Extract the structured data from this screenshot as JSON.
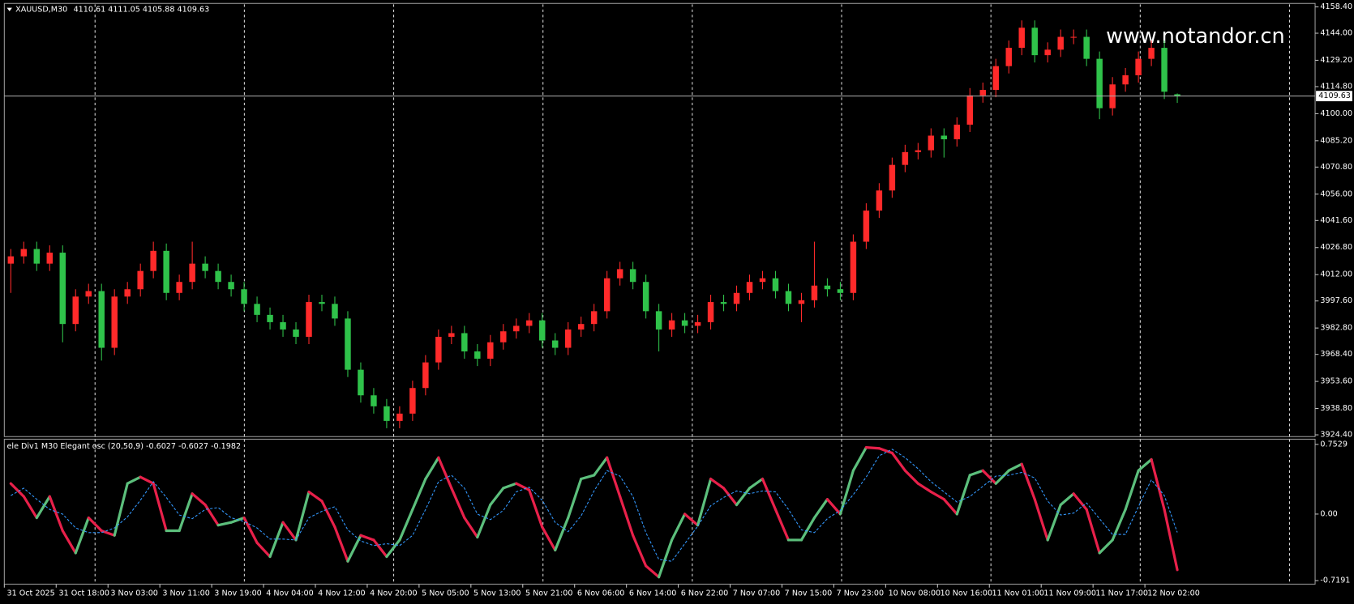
{
  "chart_data": [
    {
      "type": "candlestick",
      "title": "XAUUSD,M30",
      "watermark": "www.notandor.cn",
      "categories": [
        "31 Oct 2025",
        null,
        null,
        null,
        "31 Oct 18:00",
        null,
        null,
        null,
        "3 Nov 03:00",
        null,
        null,
        null,
        "3 Nov 11:00",
        null,
        null,
        null,
        "3 Nov 19:00",
        null,
        null,
        null,
        "4 Nov 04:00",
        null,
        null,
        null,
        "4 Nov 12:00",
        null,
        null,
        null,
        "4 Nov 20:00",
        null,
        null,
        null,
        "5 Nov 05:00",
        null,
        null,
        null,
        "5 Nov 13:00",
        null,
        null,
        null,
        "5 Nov 21:00",
        null,
        null,
        null,
        "6 Nov 06:00",
        null,
        null,
        null,
        "6 Nov 14:00",
        null,
        null,
        null,
        "6 Nov 22:00",
        null,
        null,
        null,
        "7 Nov 07:00",
        null,
        null,
        null,
        "7 Nov 15:00",
        null,
        null,
        null,
        "7 Nov 23:00",
        null,
        null,
        null,
        "10 Nov 08:00",
        null,
        null,
        null,
        "10 Nov 16:00",
        null,
        null,
        null,
        "11 Nov 01:00",
        null,
        null,
        null,
        "11 Nov 09:00",
        null,
        null,
        null,
        "11 Nov 17:00",
        null,
        null,
        null,
        "12 Nov 02:00",
        null,
        null
      ],
      "open": [
        4018,
        4022,
        4026,
        4018,
        4024,
        3985,
        4000,
        4003,
        3972,
        4000,
        4004,
        4014,
        4025,
        4002,
        4008,
        4018,
        4014,
        4008,
        4004,
        3996,
        3990,
        3986,
        3982,
        3978,
        3997,
        3996,
        3988,
        3960,
        3946,
        3940,
        3932,
        3936,
        3950,
        3964,
        3978,
        3980,
        3970,
        3966,
        3975,
        3981,
        3984,
        3987,
        3976,
        3972,
        3982,
        3985,
        3992,
        4010,
        4015,
        4008,
        3992,
        3982,
        3987,
        3984,
        3986,
        3997,
        3996,
        4002,
        4008,
        4010,
        4003,
        3996,
        3998,
        4006,
        4004,
        4002,
        4030,
        4047,
        4058,
        4072,
        4079,
        4080,
        4088,
        4086,
        4094,
        4110,
        4113,
        4126,
        4136,
        4147,
        4132,
        4135,
        4142,
        4142,
        4130,
        4103,
        4116,
        4121,
        4130,
        4136,
        4110.61
      ],
      "high": [
        4026,
        4030,
        4030,
        4028,
        4028,
        4004,
        4007,
        4007,
        4004,
        4008,
        4018,
        4030,
        4029,
        4012,
        4030,
        4022,
        4018,
        4012,
        4008,
        4000,
        3994,
        3990,
        3986,
        4001,
        4001,
        4000,
        3992,
        3964,
        3950,
        3944,
        3940,
        3954,
        3968,
        3982,
        3984,
        3984,
        3974,
        3979,
        3985,
        3988,
        3991,
        3991,
        3980,
        3986,
        3989,
        3996,
        4014,
        4019,
        4019,
        4012,
        3996,
        3991,
        3991,
        3990,
        4001,
        4001,
        4006,
        4012,
        4014,
        4014,
        4007,
        4002,
        4030,
        4010,
        4008,
        4034,
        4051,
        4062,
        4076,
        4083,
        4084,
        4092,
        4092,
        4098,
        4114,
        4117,
        4130,
        4140,
        4151,
        4151,
        4139,
        4146,
        4146,
        4146,
        4134,
        4120,
        4125,
        4134,
        4140,
        4140,
        4111.05
      ],
      "low": [
        4002,
        4018,
        4014,
        4014,
        3975,
        3981,
        3996,
        3965,
        3968,
        3996,
        4000,
        4010,
        3998,
        3998,
        4004,
        4010,
        4004,
        4000,
        3992,
        3986,
        3982,
        3978,
        3974,
        3974,
        3992,
        3984,
        3956,
        3942,
        3936,
        3928,
        3928,
        3932,
        3946,
        3960,
        3974,
        3966,
        3962,
        3962,
        3971,
        3977,
        3980,
        3972,
        3968,
        3968,
        3978,
        3981,
        3988,
        4006,
        4004,
        3988,
        3970,
        3978,
        3980,
        3980,
        3982,
        3992,
        3992,
        3998,
        4004,
        3999,
        3992,
        3986,
        3994,
        4000,
        3998,
        3998,
        4026,
        4043,
        4054,
        4068,
        4075,
        4076,
        4076,
        4082,
        4090,
        4106,
        4109,
        4122,
        4132,
        4128,
        4128,
        4131,
        4138,
        4126,
        4097,
        4099,
        4112,
        4117,
        4126,
        4108,
        4105.88
      ],
      "close": [
        4022,
        4026,
        4018,
        4024,
        3985,
        4000,
        4003,
        3972,
        4000,
        4004,
        4014,
        4025,
        4002,
        4008,
        4018,
        4014,
        4008,
        4004,
        3996,
        3990,
        3986,
        3982,
        3978,
        3997,
        3996,
        3988,
        3960,
        3946,
        3940,
        3932,
        3936,
        3950,
        3964,
        3978,
        3980,
        3970,
        3966,
        3975,
        3981,
        3984,
        3987,
        3976,
        3972,
        3982,
        3985,
        3992,
        4010,
        4015,
        4008,
        3992,
        3982,
        3987,
        3984,
        3986,
        3997,
        3996,
        4002,
        4008,
        4010,
        4003,
        3996,
        3998,
        4006,
        4004,
        4002,
        4030,
        4047,
        4058,
        4072,
        4079,
        4080,
        4088,
        4086,
        4094,
        4110,
        4113,
        4126,
        4136,
        4147,
        4132,
        4135,
        4142,
        4142,
        4130,
        4103,
        4116,
        4121,
        4130,
        4136,
        4112,
        4109.63
      ],
      "up_color": "#ff2a2a",
      "down_color": "#2fc24a",
      "ylim": [
        3923.9,
        4159.8
      ],
      "yticks": [
        {
          "value": 4158.4,
          "label": "4158.40"
        },
        {
          "value": 4144,
          "label": "4144.00"
        },
        {
          "value": 4129.2,
          "label": "4129.20"
        },
        {
          "value": 4114.8,
          "label": "4114.80"
        },
        {
          "value": 4100,
          "label": "4100.00"
        },
        {
          "value": 4085.2,
          "label": "4085.20"
        },
        {
          "value": 4070.8,
          "label": "4070.80"
        },
        {
          "value": 4056,
          "label": "4056.00"
        },
        {
          "value": 4041.6,
          "label": "4041.60"
        },
        {
          "value": 4026.8,
          "label": "4026.80"
        },
        {
          "value": 4012,
          "label": "4012.00"
        },
        {
          "value": 3997.6,
          "label": "3997.60"
        },
        {
          "value": 3982.8,
          "label": "3982.80"
        },
        {
          "value": 3968.4,
          "label": "3968.40"
        },
        {
          "value": 3953.6,
          "label": "3953.60"
        },
        {
          "value": 3938.8,
          "label": "3938.80"
        },
        {
          "value": 3924.4,
          "label": "3924.40"
        }
      ]
    },
    {
      "type": "line",
      "title": "ele Div1 M30 Elegant osc (20,50,9)",
      "series": [
        {
          "up_color": "#5cbf7c",
          "down_color": "#e8204a",
          "values": [
            0.33,
            0.19,
            -0.04,
            0.19,
            -0.18,
            -0.42,
            -0.04,
            -0.18,
            -0.23,
            0.33,
            0.4,
            0.33,
            -0.18,
            -0.18,
            0.22,
            0.1,
            -0.12,
            -0.09,
            -0.04,
            -0.31,
            -0.46,
            -0.09,
            -0.28,
            0.24,
            0.14,
            -0.14,
            -0.51,
            -0.23,
            -0.28,
            -0.46,
            -0.28,
            0.05,
            0.38,
            0.61,
            0.28,
            -0.04,
            -0.25,
            0.1,
            0.28,
            0.33,
            0.26,
            -0.14,
            -0.39,
            -0.04,
            0.38,
            0.42,
            0.61,
            0.19,
            -0.23,
            -0.56,
            -0.68,
            -0.28,
            0,
            -0.12,
            0.38,
            0.28,
            0.1,
            0.28,
            0.38,
            0.05,
            -0.28,
            -0.28,
            -0.04,
            0.16,
            0,
            0.47,
            0.72,
            0.71,
            0.66,
            0.47,
            0.33,
            0.24,
            0.16,
            0,
            0.42,
            0.47,
            0.33,
            0.47,
            0.54,
            0.16,
            -0.28,
            0.1,
            0.22,
            0.05,
            -0.42,
            -0.28,
            0.05,
            0.47,
            0.59,
            0.05,
            -0.6027
          ]
        },
        {
          "color": "#3399ff",
          "dashed": true,
          "values": [
            0.2,
            0.28,
            0.16,
            0.05,
            0,
            -0.15,
            -0.2,
            -0.2,
            -0.15,
            -0.03,
            0.15,
            0.35,
            0.18,
            -0.01,
            -0.05,
            0.05,
            0.07,
            -0.04,
            -0.08,
            -0.15,
            -0.27,
            -0.27,
            -0.28,
            -0.04,
            0.03,
            0.08,
            -0.17,
            -0.29,
            -0.34,
            -0.32,
            -0.34,
            -0.23,
            0.05,
            0.35,
            0.42,
            0.28,
            0,
            -0.06,
            0.04,
            0.24,
            0.29,
            0.15,
            -0.09,
            -0.19,
            -0.02,
            0.25,
            0.47,
            0.41,
            0.19,
            -0.2,
            -0.49,
            -0.51,
            -0.32,
            -0.13,
            0.09,
            0.18,
            0.25,
            0.22,
            0.25,
            0.24,
            0.05,
            -0.17,
            -0.2,
            -0.05,
            0.04,
            0.21,
            0.4,
            0.63,
            0.7,
            0.61,
            0.49,
            0.35,
            0.24,
            0.13,
            0.19,
            0.3,
            0.41,
            0.42,
            0.45,
            0.39,
            0.14,
            -0.01,
            0.01,
            0.12,
            -0.05,
            -0.22,
            -0.22,
            0.08,
            0.37,
            0.2,
            -0.1982
          ]
        }
      ],
      "ylim": [
        -0.757,
        0.809
      ],
      "yticks": [
        0.7529,
        {
          "value": 0,
          "label": "0.00"
        },
        -0.7191
      ]
    }
  ]
}
